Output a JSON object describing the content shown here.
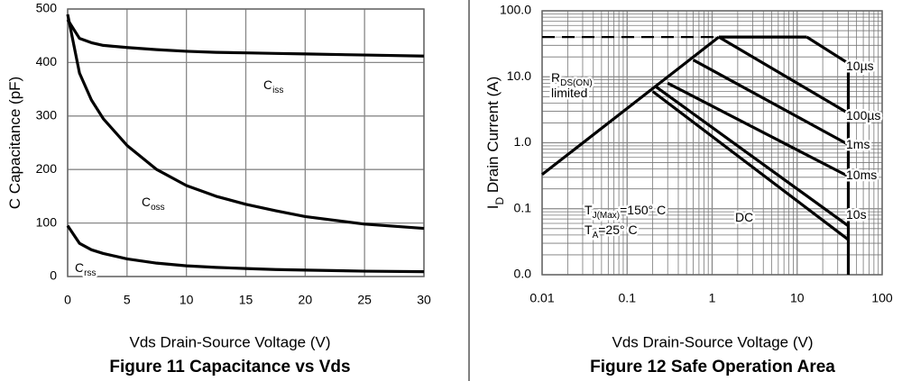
{
  "chart_data": [
    {
      "type": "line",
      "title": "Figure 11 Capacitance vs Vds",
      "x_label": "Vds Drain-Source Voltage (V)",
      "y_label": {
        "text": "C Capacitance (pF)"
      },
      "x": [
        0,
        1,
        2,
        3,
        5,
        7.5,
        10,
        12.5,
        15,
        17.5,
        20,
        25,
        30
      ],
      "xlim": [
        0,
        30
      ],
      "ylim": [
        0,
        500
      ],
      "xticks": [
        0,
        5,
        10,
        15,
        20,
        25,
        30
      ],
      "yticks": [
        0,
        100,
        200,
        300,
        400,
        500
      ],
      "grid": true,
      "series": [
        {
          "color": "#000000",
          "values": [
            480,
            445,
            437,
            432,
            428,
            424,
            421,
            419,
            418,
            417,
            416,
            414,
            412
          ]
        },
        {
          "color": "#000000",
          "values": [
            490,
            380,
            330,
            295,
            245,
            200,
            170,
            150,
            135,
            123,
            112,
            98,
            90
          ]
        },
        {
          "color": "#000000",
          "values": [
            95,
            62,
            50,
            43,
            33,
            25,
            20,
            17,
            15,
            13,
            12,
            10,
            9
          ]
        }
      ],
      "annotations": [
        {
          "text": "C",
          "sub": "iss"
        },
        {
          "text": "C",
          "sub": "oss"
        },
        {
          "text": "C",
          "sub": "rss"
        }
      ]
    },
    {
      "type": "line",
      "title": "Figure 12 Safe Operation Area",
      "x_label": "Vds Drain-Source Voltage (V)",
      "y_label": {
        "text": "I",
        "sub": "D",
        "rest": " Drain Current (A)"
      },
      "xlog": true,
      "ylog": true,
      "xlim": [
        0.01,
        100
      ],
      "ylim": [
        0.01,
        100
      ],
      "xticks": [
        0.01,
        0.1,
        1,
        10,
        100
      ],
      "yticks": [
        {
          "value": 0.01,
          "label": "0.0"
        },
        0.1,
        {
          "value": 1,
          "label": "1.0"
        },
        {
          "value": 10,
          "label": "10.0"
        },
        {
          "value": 100,
          "label": "100.0"
        }
      ],
      "grid": true,
      "series": [
        {
          "color": "#000000",
          "x": [
            0.01,
            1.2
          ],
          "values": [
            0.33,
            40
          ]
        },
        {
          "color": "#000000",
          "dashed": true,
          "x": [
            0.01,
            1.2
          ],
          "values": [
            40,
            40
          ]
        },
        {
          "color": "#000000",
          "x": [
            1.2,
            13
          ],
          "values": [
            40,
            40
          ]
        },
        {
          "color": "#000000",
          "x": [
            13,
            40
          ],
          "values": [
            40,
            16
          ]
        },
        {
          "color": "#000000",
          "x": [
            1.2,
            40
          ],
          "values": [
            40,
            2.8
          ]
        },
        {
          "color": "#000000",
          "x": [
            0.6,
            40
          ],
          "values": [
            18,
            0.94
          ]
        },
        {
          "color": "#000000",
          "x": [
            0.3,
            40
          ],
          "values": [
            8,
            0.31
          ]
        },
        {
          "color": "#000000",
          "x": [
            0.22,
            40
          ],
          "values": [
            7,
            0.055
          ]
        },
        {
          "color": "#000000",
          "x": [
            0.2,
            40
          ],
          "values": [
            6,
            0.034
          ]
        },
        {
          "color": "#000000",
          "x": [
            40,
            40
          ],
          "values": [
            0.01,
            17
          ]
        }
      ],
      "annotations": [
        {
          "text": "R",
          "sub": "DS(ON)"
        },
        {
          "text": "limited"
        },
        {
          "text": "10µs"
        },
        {
          "text": "100µs"
        },
        {
          "text": "1ms"
        },
        {
          "text": "10ms"
        },
        {
          "text": "10s"
        },
        {
          "text": "DC"
        },
        {
          "text": "T",
          "sub": "J(Max)",
          "rest": "=150° C"
        },
        {
          "text": "T",
          "sub": "A",
          "rest": "=25° C"
        }
      ]
    }
  ]
}
